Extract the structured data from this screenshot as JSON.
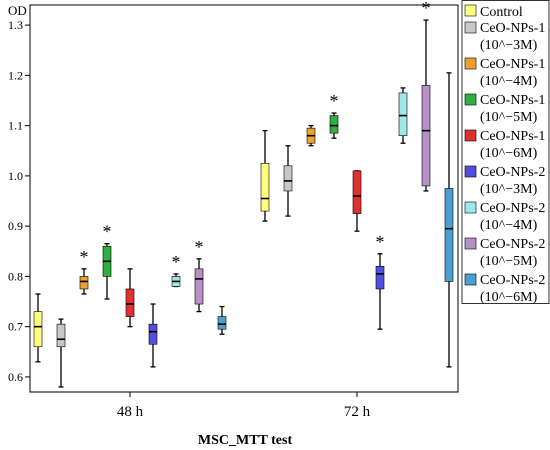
{
  "chart_data": {
    "type": "boxplot",
    "title": "",
    "ylabel": "OD",
    "xlabel": "MSC_MTT test",
    "ylim": [
      0.57,
      1.34
    ],
    "yticks": [
      0.6,
      0.7,
      0.8,
      0.9,
      1.0,
      1.1,
      1.2,
      1.3
    ],
    "ytick_labels": [
      "0.6",
      "0.7",
      "0.8",
      "0.9",
      "1.0",
      "1.1",
      "1.2",
      "1.3"
    ],
    "categories": [
      "48 h",
      "72 h"
    ],
    "grid": false,
    "legend_position": "right",
    "series": [
      {
        "name": [
          "Control"
        ],
        "color": "#ffff80",
        "boxes": [
          {
            "min": 0.63,
            "q1": 0.66,
            "median": 0.7,
            "q3": 0.73,
            "max": 0.765,
            "star": false
          },
          {
            "min": 0.91,
            "q1": 0.93,
            "median": 0.955,
            "q3": 1.025,
            "max": 1.09,
            "star": false
          }
        ]
      },
      {
        "name": [
          "CeO-NPs-1",
          "(10^−3M)"
        ],
        "color": "#c8c8c8",
        "boxes": [
          {
            "min": 0.58,
            "q1": 0.66,
            "median": 0.675,
            "q3": 0.705,
            "max": 0.715,
            "star": false
          },
          {
            "min": 0.92,
            "q1": 0.97,
            "median": 0.99,
            "q3": 1.02,
            "max": 1.06,
            "star": false
          }
        ]
      },
      {
        "name": [
          "CeO-NPs-1",
          "(10^−4M)"
        ],
        "color": "#f0a030",
        "boxes": [
          {
            "min": 0.765,
            "q1": 0.775,
            "median": 0.79,
            "q3": 0.8,
            "max": 0.815,
            "star": true
          },
          {
            "min": 1.06,
            "q1": 1.065,
            "median": 1.08,
            "q3": 1.095,
            "max": 1.1,
            "star": false
          }
        ]
      },
      {
        "name": [
          "CeO-NPs-1",
          "(10^−5M)"
        ],
        "color": "#30b040",
        "boxes": [
          {
            "min": 0.755,
            "q1": 0.8,
            "median": 0.83,
            "q3": 0.86,
            "max": 0.865,
            "star": true
          },
          {
            "min": 1.075,
            "q1": 1.085,
            "median": 1.1,
            "q3": 1.12,
            "max": 1.125,
            "star": true
          }
        ]
      },
      {
        "name": [
          "CeO-NPs-1",
          "(10^−6M)"
        ],
        "color": "#e03030",
        "boxes": [
          {
            "min": 0.7,
            "q1": 0.72,
            "median": 0.745,
            "q3": 0.775,
            "max": 0.815,
            "star": false
          },
          {
            "min": 0.89,
            "q1": 0.925,
            "median": 0.96,
            "q3": 1.01,
            "max": 1.01,
            "star": false
          }
        ]
      },
      {
        "name": [
          "CeO-NPs-2",
          "(10^−3M)"
        ],
        "color": "#5050e0",
        "boxes": [
          {
            "min": 0.62,
            "q1": 0.665,
            "median": 0.69,
            "q3": 0.705,
            "max": 0.745,
            "star": false
          },
          {
            "min": 0.695,
            "q1": 0.775,
            "median": 0.805,
            "q3": 0.82,
            "max": 0.845,
            "star": true
          }
        ]
      },
      {
        "name": [
          "CeO-NPs-2",
          "(10^−4M)"
        ],
        "color": "#a0e8e8",
        "boxes": [
          {
            "min": 0.78,
            "q1": 0.78,
            "median": 0.79,
            "q3": 0.8,
            "max": 0.805,
            "star": true
          },
          {
            "min": 1.065,
            "q1": 1.08,
            "median": 1.12,
            "q3": 1.165,
            "max": 1.175,
            "star": false
          }
        ]
      },
      {
        "name": [
          "CeO-NPs-2",
          "(10^−5M)"
        ],
        "color": "#b890c8",
        "boxes": [
          {
            "min": 0.73,
            "q1": 0.745,
            "median": 0.795,
            "q3": 0.815,
            "max": 0.835,
            "star": true
          },
          {
            "min": 0.97,
            "q1": 0.98,
            "median": 1.09,
            "q3": 1.18,
            "max": 1.31,
            "star": true
          }
        ]
      },
      {
        "name": [
          "CeO-NPs-2",
          "(10^−6M)"
        ],
        "color": "#4aa0d0",
        "boxes": [
          {
            "min": 0.685,
            "q1": 0.695,
            "median": 0.705,
            "q3": 0.72,
            "max": 0.74,
            "star": false
          },
          {
            "min": 0.62,
            "q1": 0.79,
            "median": 0.895,
            "q3": 0.975,
            "max": 1.205,
            "star": false
          }
        ]
      }
    ],
    "annotation_symbol": "*"
  }
}
